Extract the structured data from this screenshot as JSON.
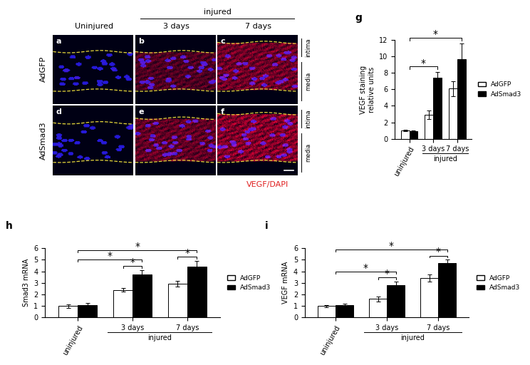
{
  "chart_data": [
    {
      "type": "bar",
      "panel": "g",
      "y_label": "VEGF staining\nrelative units",
      "categories": [
        "uninjured",
        "3 days",
        "7 days"
      ],
      "group_label": {
        "label": "injured",
        "categories": [
          "3 days",
          "7 days"
        ]
      },
      "series": [
        {
          "name": "AdGFP",
          "color": "#ffffff",
          "values": [
            1.0,
            2.9,
            6.1
          ],
          "errors": [
            0.1,
            0.5,
            0.9
          ]
        },
        {
          "name": "AdSmad3",
          "color": "#000000",
          "values": [
            0.9,
            7.4,
            9.7
          ],
          "errors": [
            0.1,
            0.7,
            1.9
          ]
        }
      ],
      "significance": [
        {
          "from": {
            "category": "uninjured"
          },
          "to": {
            "category": "3 days",
            "series": "AdSmad3"
          },
          "label": "*"
        },
        {
          "from": {
            "category": "uninjured"
          },
          "to": {
            "category": "7 days",
            "series": "AdSmad3"
          },
          "label": "*"
        }
      ],
      "ylim": [
        0,
        12
      ],
      "yticks": [
        0,
        2,
        4,
        6,
        8,
        10,
        12
      ],
      "legend": "right",
      "grid": false
    },
    {
      "type": "bar",
      "panel": "h",
      "y_label": "Smad3 mRNA",
      "categories": [
        "uninjured",
        "3 days",
        "7 days"
      ],
      "group_label": {
        "label": "injured",
        "categories": [
          "3 days",
          "7 days"
        ]
      },
      "series": [
        {
          "name": "AdGFP",
          "color": "#ffffff",
          "values": [
            1.0,
            2.4,
            2.9
          ],
          "errors": [
            0.15,
            0.15,
            0.25
          ]
        },
        {
          "name": "AdSmad3",
          "color": "#000000",
          "values": [
            1.1,
            3.7,
            4.4
          ],
          "errors": [
            0.15,
            0.4,
            0.5
          ]
        }
      ],
      "significance": [
        {
          "from": {
            "category": "3 days",
            "series": "AdGFP"
          },
          "to": {
            "category": "3 days",
            "series": "AdSmad3"
          },
          "label": "*"
        },
        {
          "from": {
            "category": "7 days",
            "series": "AdGFP"
          },
          "to": {
            "category": "7 days",
            "series": "AdSmad3"
          },
          "label": "*"
        },
        {
          "from": {
            "category": "uninjured"
          },
          "to": {
            "category": "3 days",
            "series": "AdSmad3"
          },
          "label": "*"
        },
        {
          "from": {
            "category": "uninjured"
          },
          "to": {
            "category": "7 days",
            "series": "AdSmad3"
          },
          "label": "*"
        }
      ],
      "ylim": [
        0,
        6
      ],
      "yticks": [
        0,
        1,
        2,
        3,
        4,
        5,
        6
      ],
      "legend": "right",
      "grid": false
    },
    {
      "type": "bar",
      "panel": "i",
      "y_label": "VEGF mRNA",
      "categories": [
        "uninjured",
        "3 days",
        "7 days"
      ],
      "group_label": {
        "label": "injured",
        "categories": [
          "3 days",
          "7 days"
        ]
      },
      "series": [
        {
          "name": "AdGFP",
          "color": "#ffffff",
          "values": [
            1.0,
            1.6,
            3.4
          ],
          "errors": [
            0.1,
            0.2,
            0.3
          ]
        },
        {
          "name": "AdSmad3",
          "color": "#000000",
          "values": [
            1.1,
            2.8,
            4.7
          ],
          "errors": [
            0.1,
            0.3,
            0.3
          ]
        }
      ],
      "significance": [
        {
          "from": {
            "category": "3 days",
            "series": "AdGFP"
          },
          "to": {
            "category": "3 days",
            "series": "AdSmad3"
          },
          "label": "*"
        },
        {
          "from": {
            "category": "7 days",
            "series": "AdGFP"
          },
          "to": {
            "category": "7 days",
            "series": "AdSmad3"
          },
          "label": "*"
        },
        {
          "from": {
            "category": "uninjured"
          },
          "to": {
            "category": "3 days",
            "series": "AdSmad3"
          },
          "label": "*"
        },
        {
          "from": {
            "category": "uninjured"
          },
          "to": {
            "category": "7 days",
            "series": "AdSmad3"
          },
          "label": "*"
        }
      ],
      "ylim": [
        0,
        6
      ],
      "yticks": [
        0,
        1,
        2,
        3,
        4,
        5,
        6
      ],
      "legend": "right",
      "grid": false
    }
  ],
  "image_panels": {
    "panel_letters": [
      [
        "a",
        "b",
        "c"
      ],
      [
        "d",
        "e",
        "f"
      ]
    ],
    "row_labels": [
      "AdGFP",
      "AdSmad3"
    ],
    "column_labels": [
      "Uninjured",
      "3 days",
      "7 days"
    ],
    "group_label": {
      "label": "injured",
      "columns": [
        "3 days",
        "7 days"
      ]
    },
    "layer_labels": [
      "intima",
      "media"
    ],
    "stain_label": "VEGF/DAPI"
  }
}
